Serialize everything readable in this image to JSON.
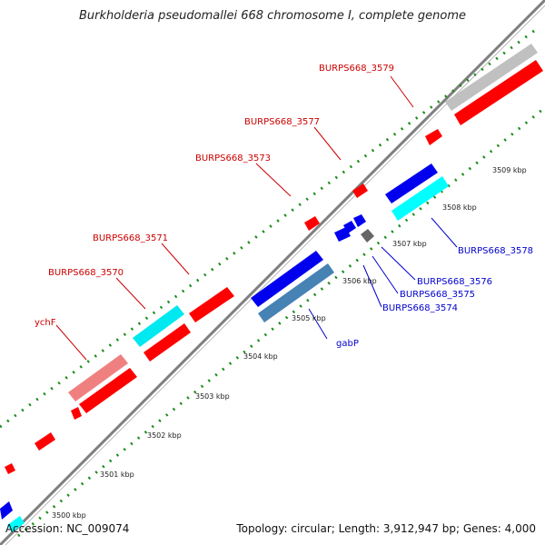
{
  "title": "Burkholderia pseudomallei 668 chromosome I, complete genome",
  "footer": {
    "accession": "Accession: NC_009074",
    "summary": "Topology: circular; Length: 3,912,947 bp; Genes: 4,000"
  },
  "colors": {
    "forward_cds": "#ff0000",
    "forward_rna": "#f08080",
    "reverse_cds": "#0000ee",
    "reverse_other": "#4682b4",
    "highlight": "#00ffff",
    "pseudo": "#c0c0c0",
    "dark": "#666666",
    "backbone": "#7f7f7f",
    "ticks": "#008000",
    "label_forward": "#cc0000",
    "label_reverse": "#0000cc"
  },
  "kbp_labels": [
    "3500 kbp",
    "3501 kbp",
    "3502 kbp",
    "3503 kbp",
    "3504 kbp",
    "3505 kbp",
    "3506 kbp",
    "3507 kbp",
    "3508 kbp",
    "3509 kbp"
  ],
  "forward_labels": [
    "ychF",
    "BURPS668_3570",
    "BURPS668_3571",
    "BURPS668_3573",
    "BURPS668_3577",
    "BURPS668_3579"
  ],
  "reverse_labels": [
    "gabP",
    "BURPS668_3574",
    "BURPS668_3575",
    "BURPS668_3576",
    "BURPS668_3578"
  ]
}
